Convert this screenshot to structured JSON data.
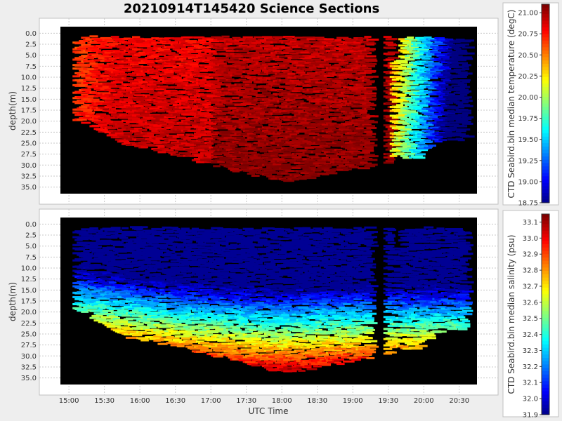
{
  "chart_data": [
    {
      "type": "heatmap",
      "name": "temperature",
      "title": "20210914T145420 Science Sections",
      "xlabel": "",
      "ylabel": "depth(m)",
      "x_range_hours": [
        14.88,
        20.75
      ],
      "x_ticks": [
        {
          "value": 15.0,
          "label": "15:00"
        },
        {
          "value": 15.5,
          "label": "15:30"
        },
        {
          "value": 16.0,
          "label": "16:00"
        },
        {
          "value": 16.5,
          "label": "16:30"
        },
        {
          "value": 17.0,
          "label": "17:00"
        },
        {
          "value": 17.5,
          "label": "17:30"
        },
        {
          "value": 18.0,
          "label": "18:00"
        },
        {
          "value": 18.5,
          "label": "18:30"
        },
        {
          "value": 19.0,
          "label": "19:00"
        },
        {
          "value": 19.5,
          "label": "19:30"
        },
        {
          "value": 20.0,
          "label": "20:00"
        },
        {
          "value": 20.5,
          "label": "20:30"
        }
      ],
      "ylim": [
        -1.5,
        36.5
      ],
      "y_ticks": [
        "0.0",
        "2.5",
        "5.0",
        "7.5",
        "10.0",
        "12.5",
        "15.0",
        "17.5",
        "20.0",
        "22.5",
        "25.0",
        "27.5",
        "30.0",
        "32.5",
        "35.0"
      ],
      "colorbar_label": "CTD Seabird.bin median temperature (degC)",
      "colorbar_range": [
        18.75,
        21.1
      ],
      "colorbar_ticks": [
        "18.75",
        "19.00",
        "19.25",
        "19.50",
        "19.75",
        "20.00",
        "20.25",
        "20.50",
        "20.75",
        "21.00"
      ]
    },
    {
      "type": "heatmap",
      "name": "salinity",
      "title": "",
      "xlabel": "UTC Time",
      "ylabel": "depth(m)",
      "x_range_hours": [
        14.88,
        20.75
      ],
      "x_ticks": [
        {
          "value": 15.0,
          "label": "15:00"
        },
        {
          "value": 15.5,
          "label": "15:30"
        },
        {
          "value": 16.0,
          "label": "16:00"
        },
        {
          "value": 16.5,
          "label": "16:30"
        },
        {
          "value": 17.0,
          "label": "17:00"
        },
        {
          "value": 17.5,
          "label": "17:30"
        },
        {
          "value": 18.0,
          "label": "18:00"
        },
        {
          "value": 18.5,
          "label": "18:30"
        },
        {
          "value": 19.0,
          "label": "19:00"
        },
        {
          "value": 19.5,
          "label": "19:30"
        },
        {
          "value": 20.0,
          "label": "20:00"
        },
        {
          "value": 20.5,
          "label": "20:30"
        }
      ],
      "ylim": [
        -1.5,
        36.5
      ],
      "y_ticks": [
        "0.0",
        "2.5",
        "5.0",
        "7.5",
        "10.0",
        "12.5",
        "15.0",
        "17.5",
        "20.0",
        "22.5",
        "25.0",
        "27.5",
        "30.0",
        "32.5",
        "35.0"
      ],
      "colorbar_label": "CTD Seabird.bin median salinity (psu)",
      "colorbar_range": [
        31.9,
        33.15
      ],
      "colorbar_ticks": [
        "31.9",
        "32.0",
        "32.1",
        "32.2",
        "32.3",
        "32.4",
        "32.5",
        "32.6",
        "32.7",
        "32.8",
        "32.9",
        "33.0",
        "33.1"
      ]
    }
  ],
  "colors": {
    "page_bg": "#eeeeee",
    "panel_bg": "#ffffff",
    "plot_bg": "#000000",
    "grid": "#c8c8c8",
    "text": "#333333"
  }
}
